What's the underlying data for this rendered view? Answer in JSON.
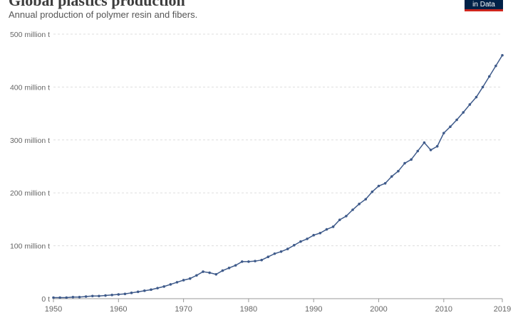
{
  "header": {
    "title": "Global plastics production",
    "subtitle": "Annual production of polymer resin and fibers.",
    "logo_text": "in Data"
  },
  "colors": {
    "line": "#3e5a8a",
    "grid": "#dddddd",
    "axis": "#999999",
    "logo_bg": "#002147",
    "logo_accent": "#ce261e"
  },
  "chart_data": {
    "type": "line",
    "title": "Global plastics production",
    "subtitle": "Annual production of polymer resin and fibers.",
    "xlabel": "",
    "ylabel": "",
    "xlim": [
      1950,
      2019
    ],
    "ylim": [
      0,
      500
    ],
    "y_unit": "million t",
    "y_ticks": [
      {
        "value": 0,
        "label": "0 t"
      },
      {
        "value": 100,
        "label": "100 million t"
      },
      {
        "value": 200,
        "label": "200 million t"
      },
      {
        "value": 300,
        "label": "300 million t"
      },
      {
        "value": 400,
        "label": "400 million t"
      },
      {
        "value": 500,
        "label": "500 million t"
      }
    ],
    "x_ticks": [
      {
        "value": 1950,
        "label": "1950"
      },
      {
        "value": 1960,
        "label": "1960"
      },
      {
        "value": 1970,
        "label": "1970"
      },
      {
        "value": 1980,
        "label": "1980"
      },
      {
        "value": 1990,
        "label": "1990"
      },
      {
        "value": 2000,
        "label": "2000"
      },
      {
        "value": 2010,
        "label": "2010"
      },
      {
        "value": 2019,
        "label": "2019"
      }
    ],
    "grid": "horizontal-dashed",
    "x": [
      1950,
      1951,
      1952,
      1953,
      1954,
      1955,
      1956,
      1957,
      1958,
      1959,
      1960,
      1961,
      1962,
      1963,
      1964,
      1965,
      1966,
      1967,
      1968,
      1969,
      1970,
      1971,
      1972,
      1973,
      1974,
      1975,
      1976,
      1977,
      1978,
      1979,
      1980,
      1981,
      1982,
      1983,
      1984,
      1985,
      1986,
      1987,
      1988,
      1989,
      1990,
      1991,
      1992,
      1993,
      1994,
      1995,
      1996,
      1997,
      1998,
      1999,
      2000,
      2001,
      2002,
      2003,
      2004,
      2005,
      2006,
      2007,
      2008,
      2009,
      2010,
      2011,
      2012,
      2013,
      2014,
      2015,
      2016,
      2017,
      2018,
      2019
    ],
    "series": [
      {
        "values": [
          2,
          2,
          2,
          3,
          3,
          4,
          5,
          5,
          6,
          7,
          8,
          9,
          11,
          13,
          15,
          17,
          20,
          23,
          27,
          31,
          35,
          38,
          44,
          51,
          49,
          46,
          53,
          58,
          63,
          70,
          70,
          71,
          73,
          79,
          85,
          89,
          94,
          101,
          108,
          113,
          120,
          124,
          131,
          136,
          149,
          156,
          168,
          179,
          188,
          202,
          213,
          218,
          231,
          241,
          256,
          263,
          279,
          295,
          281,
          288,
          313,
          325,
          338,
          352,
          367,
          381,
          400,
          420,
          440,
          460
        ]
      }
    ]
  }
}
